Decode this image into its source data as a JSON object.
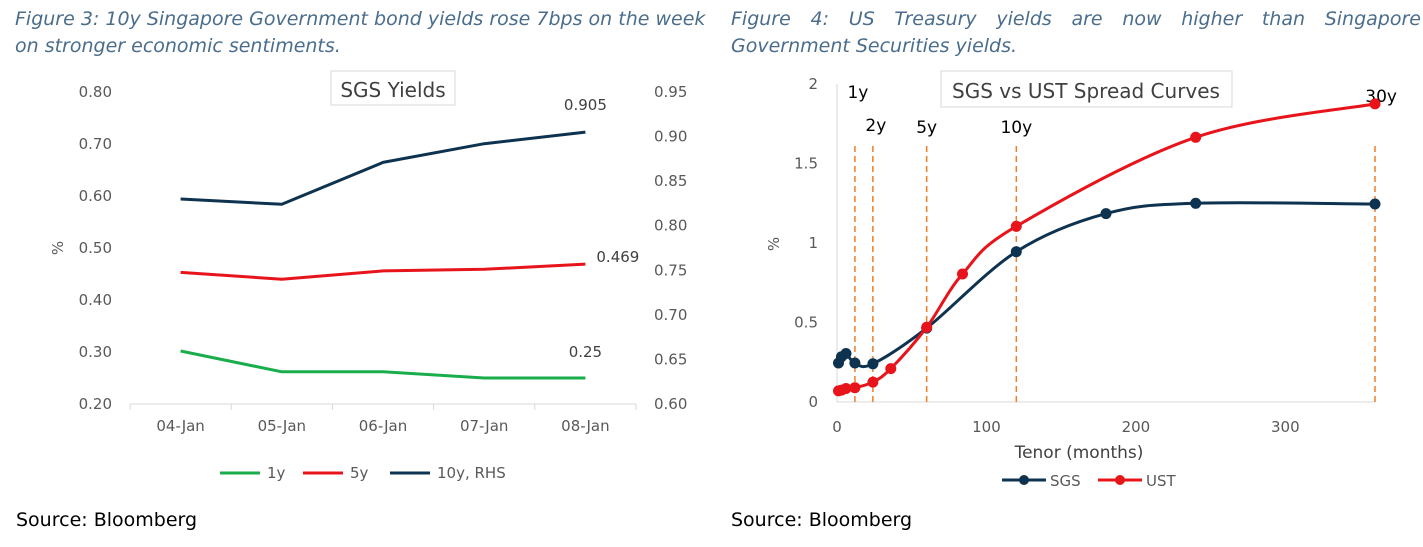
{
  "captions": {
    "fig3": "Figure 3: 10y Singapore Government bond yields rose 7bps on the week on stronger economic sentiments.",
    "fig4": "Figure 4: US Treasury yields are now higher than Singapore Government Securities yields."
  },
  "source1": "Source: Bloomberg",
  "source2": "Source: Bloomberg",
  "chart_data": [
    {
      "type": "line",
      "title": "SGS Yields",
      "categories": [
        "04-Jan",
        "05-Jan",
        "06-Jan",
        "07-Jan",
        "08-Jan"
      ],
      "ylabel": "%",
      "ylim": [
        0.2,
        0.8
      ],
      "yticks": [
        "0.20",
        "0.30",
        "0.40",
        "0.50",
        "0.60",
        "0.70",
        "0.80"
      ],
      "y2lim": [
        0.6,
        0.95
      ],
      "y2ticks": [
        "0.60",
        "0.65",
        "0.70",
        "0.75",
        "0.80",
        "0.85",
        "0.90",
        "0.95"
      ],
      "series": [
        {
          "name": "1y",
          "axis": "left",
          "color": "#1aad4b",
          "values": [
            0.302,
            0.262,
            0.262,
            0.25,
            0.25
          ]
        },
        {
          "name": "5y",
          "axis": "left",
          "color": "#e8141b",
          "values": [
            0.453,
            0.44,
            0.456,
            0.459,
            0.469
          ]
        },
        {
          "name": "10y, RHS",
          "axis": "right",
          "color": "#0d3350",
          "values": [
            0.83,
            0.824,
            0.871,
            0.892,
            0.905
          ]
        }
      ],
      "data_labels": [
        "0.905",
        "0.469",
        "0.25"
      ],
      "legend": "bottom",
      "grid": false
    },
    {
      "type": "line",
      "title": "SGS vs UST Spread Curves",
      "xlabel": "Tenor (months)",
      "ylabel": "%",
      "xlim": [
        0,
        360
      ],
      "xticks": [
        "0",
        "100",
        "200",
        "300"
      ],
      "ylim": [
        0,
        2
      ],
      "yticks": [
        "0",
        "0.5",
        "1",
        "1.5",
        "2"
      ],
      "series": [
        {
          "name": "SGS",
          "color": "#0d3350",
          "x": [
            1,
            3,
            6,
            12,
            24,
            60,
            120,
            180,
            240,
            360
          ],
          "y": [
            0.245,
            0.285,
            0.305,
            0.245,
            0.24,
            0.465,
            0.945,
            1.185,
            1.25,
            1.245
          ]
        },
        {
          "name": "UST",
          "color": "#e8141b",
          "x": [
            1,
            3,
            6,
            12,
            24,
            36,
            60,
            84,
            120,
            240,
            360
          ],
          "y": [
            0.07,
            0.075,
            0.085,
            0.09,
            0.125,
            0.21,
            0.47,
            0.805,
            1.105,
            1.665,
            1.875
          ]
        }
      ],
      "tenor_markers": [
        {
          "label": "1y",
          "x": 12
        },
        {
          "label": "2y",
          "x": 24
        },
        {
          "label": "5y",
          "x": 60
        },
        {
          "label": "10y",
          "x": 120
        },
        {
          "label": "30y",
          "x": 360
        }
      ],
      "marker_color": "#f07d2a",
      "legend": "bottom",
      "grid": false
    }
  ]
}
